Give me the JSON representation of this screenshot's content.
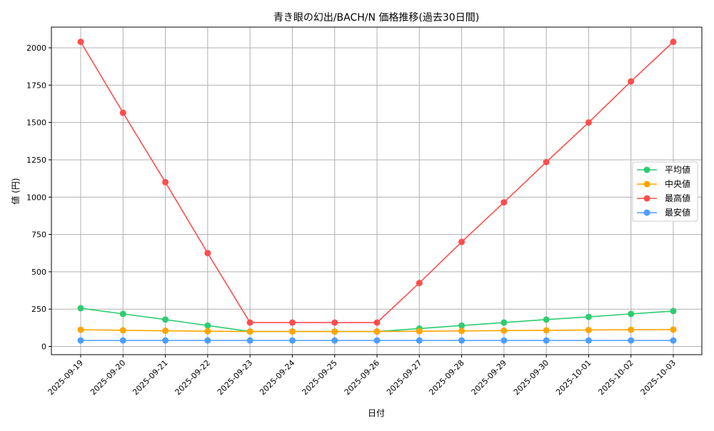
{
  "chart_data": {
    "type": "line",
    "title": "青き眼の幻出/BACH/N 価格推移(過去30日間)",
    "xlabel": "日付",
    "ylabel": "値 (円)",
    "x": [
      "2025-09-19",
      "2025-09-20",
      "2025-09-21",
      "2025-09-22",
      "2025-09-23",
      "2025-09-24",
      "2025-09-25",
      "2025-09-26",
      "2025-09-27",
      "2025-09-28",
      "2025-09-29",
      "2025-09-30",
      "2025-10-01",
      "2025-10-02",
      "2025-10-03"
    ],
    "yticks": [
      0,
      250,
      500,
      750,
      1000,
      1250,
      1500,
      1750,
      2000
    ],
    "ylim": [
      -55,
      2140
    ],
    "grid": true,
    "legend_position": "right",
    "series": [
      {
        "name": "平均値",
        "color": "#2ecc71",
        "values": [
          256,
          218,
          180,
          140,
          100,
          100,
          100,
          100,
          120,
          140,
          160,
          180,
          198,
          218,
          237
        ]
      },
      {
        "name": "中央値",
        "color": "#ffa500",
        "values": [
          112,
          108,
          105,
          102,
          100,
          100,
          100,
          100,
          102,
          104,
          106,
          108,
          110,
          112,
          113
        ]
      },
      {
        "name": "最高値",
        "color": "#ff4d4d",
        "values": [
          2040,
          1565,
          1100,
          625,
          160,
          160,
          160,
          160,
          425,
          700,
          965,
          1235,
          1500,
          1775,
          2040
        ]
      },
      {
        "name": "最安値",
        "color": "#4d9eff",
        "values": [
          40,
          40,
          40,
          40,
          40,
          40,
          40,
          40,
          40,
          40,
          40,
          40,
          40,
          40,
          40
        ]
      }
    ]
  }
}
